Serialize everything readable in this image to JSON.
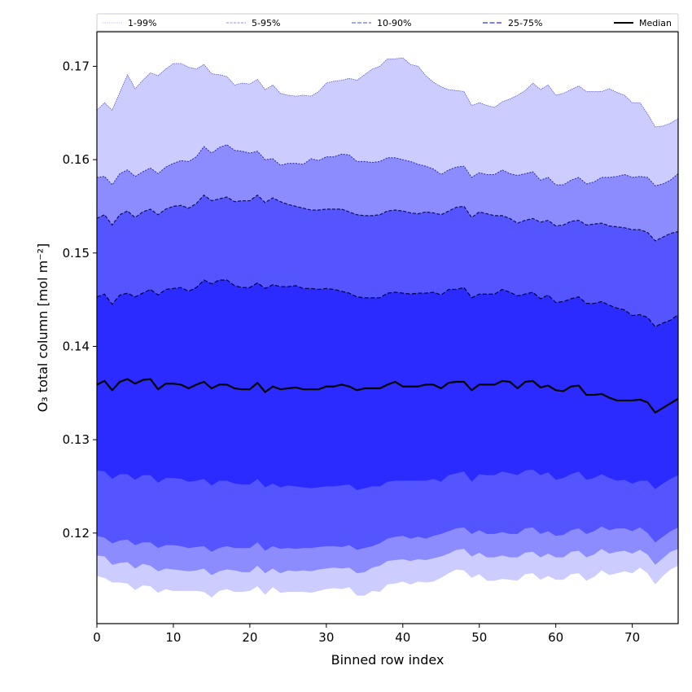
{
  "chart_data": {
    "type": "area",
    "title": "",
    "xlabel": "Binned row index",
    "ylabel": "O₃ total column [mol m⁻²]",
    "xlim": [
      0,
      76
    ],
    "ylim": [
      0.1103,
      0.1737
    ],
    "grid": false,
    "legend_placement": "top",
    "x_ticks": [
      0,
      10,
      20,
      30,
      40,
      50,
      60,
      70
    ],
    "x_tick_labels": [
      "0",
      "10",
      "20",
      "30",
      "40",
      "50",
      "60",
      "70"
    ],
    "y_ticks": [
      0.12,
      0.13,
      0.14,
      0.15,
      0.16,
      0.17
    ],
    "y_tick_labels": [
      "0.12",
      "0.13",
      "0.14",
      "0.15",
      "0.16",
      "0.17"
    ],
    "legend": [
      {
        "label": "1-99%",
        "color": "#ccccff",
        "style": "dotted"
      },
      {
        "label": "5-95%",
        "color": "#8c8cff",
        "style": "dashed-fine"
      },
      {
        "label": "10-90%",
        "color": "#5555ff",
        "style": "dashed"
      },
      {
        "label": "25-75%",
        "color": "#2b2bff",
        "style": "dashed-bold"
      },
      {
        "label": "Median",
        "color": "#000000",
        "style": "solid"
      }
    ],
    "x": [
      0,
      1,
      2,
      3,
      4,
      5,
      6,
      7,
      8,
      9,
      10,
      11,
      12,
      13,
      14,
      15,
      16,
      17,
      18,
      19,
      20,
      21,
      22,
      23,
      24,
      25,
      26,
      27,
      28,
      29,
      30,
      31,
      32,
      33,
      34,
      35,
      36,
      37,
      38,
      39,
      40,
      41,
      42,
      43,
      44,
      45,
      46,
      47,
      48,
      49,
      50,
      51,
      52,
      53,
      54,
      55,
      56,
      57,
      58,
      59,
      60,
      61,
      62,
      63,
      64,
      65,
      66,
      67,
      68,
      69,
      70,
      71,
      72,
      73,
      74,
      75,
      76
    ],
    "bands": [
      {
        "name": "1-99%",
        "color": "#ccccff",
        "upper": [
          0.1653,
          0.1661,
          0.1653,
          0.1672,
          0.1691,
          0.1676,
          0.1685,
          0.1693,
          0.169,
          0.1697,
          0.1703,
          0.1703,
          0.1699,
          0.1697,
          0.1702,
          0.1692,
          0.1691,
          0.1689,
          0.168,
          0.1682,
          0.1681,
          0.1686,
          0.1675,
          0.168,
          0.1671,
          0.1669,
          0.1668,
          0.1669,
          0.1668,
          0.1673,
          0.1682,
          0.1684,
          0.1685,
          0.1687,
          0.1685,
          0.1691,
          0.1697,
          0.17,
          0.1708,
          0.1708,
          0.1709,
          0.1702,
          0.17,
          0.169,
          0.1683,
          0.1678,
          0.1675,
          0.1674,
          0.1673,
          0.1658,
          0.1661,
          0.1658,
          0.1656,
          0.1662,
          0.1665,
          0.1669,
          0.1674,
          0.1682,
          0.1675,
          0.168,
          0.1669,
          0.1671,
          0.1675,
          0.1679,
          0.1673,
          0.1673,
          0.1673,
          0.1676,
          0.1672,
          0.1669,
          0.1661,
          0.1661,
          0.1649,
          0.1635,
          0.1636,
          0.1639,
          0.1644
        ],
        "lower": [
          0.1154,
          0.1152,
          0.1147,
          0.1147,
          0.1146,
          0.1139,
          0.1144,
          0.1143,
          0.1136,
          0.114,
          0.1138,
          0.1138,
          0.1138,
          0.1138,
          0.1137,
          0.1131,
          0.1138,
          0.114,
          0.1137,
          0.1137,
          0.1138,
          0.1143,
          0.1134,
          0.1142,
          0.1136,
          0.1137,
          0.1137,
          0.1137,
          0.1136,
          0.1138,
          0.114,
          0.1141,
          0.114,
          0.1142,
          0.1133,
          0.1133,
          0.1138,
          0.1137,
          0.1145,
          0.1146,
          0.1148,
          0.1145,
          0.1148,
          0.1147,
          0.1148,
          0.1152,
          0.1157,
          0.1161,
          0.116,
          0.1152,
          0.1156,
          0.1149,
          0.1149,
          0.1151,
          0.115,
          0.1149,
          0.1156,
          0.1157,
          0.115,
          0.1154,
          0.115,
          0.115,
          0.1156,
          0.1157,
          0.1149,
          0.1153,
          0.116,
          0.1155,
          0.1157,
          0.1159,
          0.1157,
          0.1163,
          0.1157,
          0.1145,
          0.1154,
          0.1161,
          0.1165
        ]
      },
      {
        "name": "5-95%",
        "color": "#8c8cff",
        "upper": [
          0.1581,
          0.1582,
          0.1573,
          0.1585,
          0.1589,
          0.1582,
          0.1587,
          0.1591,
          0.1585,
          0.1592,
          0.1596,
          0.1599,
          0.1598,
          0.1603,
          0.1614,
          0.1607,
          0.1613,
          0.1616,
          0.161,
          0.1609,
          0.1607,
          0.1609,
          0.16,
          0.1601,
          0.1594,
          0.1596,
          0.1596,
          0.1595,
          0.1601,
          0.1599,
          0.1603,
          0.1603,
          0.1606,
          0.1605,
          0.1598,
          0.1598,
          0.1597,
          0.1598,
          0.1602,
          0.1602,
          0.16,
          0.1598,
          0.1595,
          0.1593,
          0.159,
          0.1584,
          0.1589,
          0.1592,
          0.1593,
          0.1581,
          0.1586,
          0.1584,
          0.1584,
          0.1589,
          0.1585,
          0.1583,
          0.1585,
          0.1587,
          0.1578,
          0.1581,
          0.1573,
          0.1573,
          0.1578,
          0.1581,
          0.1574,
          0.1576,
          0.1581,
          0.1581,
          0.1582,
          0.1584,
          0.1581,
          0.1582,
          0.1581,
          0.1572,
          0.1574,
          0.1578,
          0.1585
        ],
        "lower": [
          0.1176,
          0.1175,
          0.1166,
          0.1168,
          0.1169,
          0.1162,
          0.1167,
          0.1165,
          0.1159,
          0.1162,
          0.1161,
          0.116,
          0.1159,
          0.116,
          0.1162,
          0.1155,
          0.1159,
          0.1161,
          0.116,
          0.1158,
          0.1158,
          0.1165,
          0.1157,
          0.1162,
          0.1157,
          0.116,
          0.1159,
          0.116,
          0.1159,
          0.1161,
          0.1162,
          0.1163,
          0.1162,
          0.1163,
          0.1157,
          0.1158,
          0.1163,
          0.1165,
          0.117,
          0.1171,
          0.1172,
          0.117,
          0.1172,
          0.1171,
          0.1173,
          0.1175,
          0.1178,
          0.1182,
          0.1183,
          0.1175,
          0.1179,
          0.1174,
          0.1174,
          0.1176,
          0.1174,
          0.1174,
          0.1179,
          0.118,
          0.1174,
          0.1178,
          0.1174,
          0.1174,
          0.118,
          0.1181,
          0.1174,
          0.1177,
          0.1183,
          0.1178,
          0.118,
          0.1181,
          0.1178,
          0.1182,
          0.1177,
          0.1166,
          0.1173,
          0.118,
          0.1183
        ]
      },
      {
        "name": "10-90%",
        "color": "#5555ff",
        "upper": [
          0.1537,
          0.1541,
          0.153,
          0.1541,
          0.1545,
          0.1538,
          0.1544,
          0.1547,
          0.1541,
          0.1547,
          0.155,
          0.1551,
          0.1548,
          0.1553,
          0.1562,
          0.1556,
          0.1558,
          0.156,
          0.1555,
          0.1556,
          0.1556,
          0.1562,
          0.1554,
          0.1559,
          0.1555,
          0.1552,
          0.155,
          0.1548,
          0.1546,
          0.1546,
          0.1547,
          0.1547,
          0.1547,
          0.1544,
          0.1541,
          0.154,
          0.154,
          0.1541,
          0.1545,
          0.1546,
          0.1545,
          0.1543,
          0.1542,
          0.1544,
          0.1543,
          0.1541,
          0.1545,
          0.1549,
          0.155,
          0.1538,
          0.1544,
          0.1542,
          0.154,
          0.154,
          0.1537,
          0.1532,
          0.1535,
          0.1537,
          0.1533,
          0.1535,
          0.1529,
          0.153,
          0.1534,
          0.1535,
          0.153,
          0.1531,
          0.1532,
          0.1529,
          0.1528,
          0.1527,
          0.1525,
          0.1525,
          0.1522,
          0.1513,
          0.1517,
          0.1521,
          0.1523
        ],
        "lower": [
          0.1197,
          0.1195,
          0.1189,
          0.1192,
          0.1193,
          0.1187,
          0.119,
          0.119,
          0.1184,
          0.1187,
          0.1187,
          0.1186,
          0.1184,
          0.1185,
          0.1186,
          0.118,
          0.1184,
          0.1186,
          0.1184,
          0.1184,
          0.1184,
          0.119,
          0.1181,
          0.1186,
          0.1183,
          0.1184,
          0.1183,
          0.1184,
          0.1184,
          0.1185,
          0.1186,
          0.1186,
          0.1185,
          0.1187,
          0.1182,
          0.1184,
          0.1186,
          0.1189,
          0.1194,
          0.1196,
          0.1197,
          0.1194,
          0.1196,
          0.1194,
          0.1197,
          0.1199,
          0.1202,
          0.1205,
          0.1206,
          0.1199,
          0.1203,
          0.1199,
          0.1199,
          0.1201,
          0.1199,
          0.1199,
          0.1205,
          0.1206,
          0.1199,
          0.1202,
          0.1197,
          0.1198,
          0.1203,
          0.1205,
          0.1199,
          0.1202,
          0.1207,
          0.1203,
          0.1205,
          0.1205,
          0.1202,
          0.1206,
          0.12,
          0.119,
          0.1196,
          0.1202,
          0.1206
        ]
      },
      {
        "name": "25-75%",
        "color": "#2b2bff",
        "upper": [
          0.1453,
          0.1456,
          0.1445,
          0.1455,
          0.1457,
          0.1453,
          0.1457,
          0.1461,
          0.1455,
          0.1461,
          0.1462,
          0.1463,
          0.1459,
          0.1463,
          0.1471,
          0.1467,
          0.1471,
          0.1471,
          0.1465,
          0.1463,
          0.1463,
          0.1468,
          0.1462,
          0.1466,
          0.1464,
          0.1464,
          0.1465,
          0.1462,
          0.1462,
          0.1461,
          0.1462,
          0.1461,
          0.1459,
          0.1457,
          0.1453,
          0.1452,
          0.1452,
          0.1452,
          0.1457,
          0.1458,
          0.1457,
          0.1456,
          0.1457,
          0.1457,
          0.1458,
          0.1455,
          0.1461,
          0.1461,
          0.1463,
          0.1452,
          0.1456,
          0.1456,
          0.1456,
          0.1461,
          0.1458,
          0.1454,
          0.1456,
          0.1458,
          0.1451,
          0.1455,
          0.1447,
          0.1448,
          0.1451,
          0.1453,
          0.1446,
          0.1446,
          0.1448,
          0.1444,
          0.1441,
          0.1439,
          0.1433,
          0.1434,
          0.1431,
          0.1421,
          0.1425,
          0.1428,
          0.1434
        ],
        "lower": [
          0.1267,
          0.1266,
          0.1258,
          0.1263,
          0.1263,
          0.1257,
          0.1262,
          0.1262,
          0.1254,
          0.1259,
          0.1259,
          0.1258,
          0.1255,
          0.1256,
          0.1258,
          0.1251,
          0.1256,
          0.1256,
          0.1253,
          0.1252,
          0.1252,
          0.1258,
          0.1249,
          0.1253,
          0.1249,
          0.1251,
          0.125,
          0.1249,
          0.1248,
          0.1249,
          0.125,
          0.125,
          0.1251,
          0.1252,
          0.1246,
          0.1248,
          0.125,
          0.125,
          0.1255,
          0.1256,
          0.1256,
          0.1256,
          0.1256,
          0.1256,
          0.1258,
          0.1255,
          0.1262,
          0.1264,
          0.1266,
          0.1255,
          0.1263,
          0.1262,
          0.1262,
          0.1266,
          0.1264,
          0.1262,
          0.1267,
          0.1268,
          0.1262,
          0.1265,
          0.1257,
          0.1259,
          0.1263,
          0.1266,
          0.1257,
          0.1259,
          0.1263,
          0.1259,
          0.1256,
          0.1257,
          0.1253,
          0.1256,
          0.1256,
          0.1247,
          0.1253,
          0.1258,
          0.1262
        ]
      }
    ],
    "series": [
      {
        "name": "Median",
        "color": "#000000",
        "values": [
          0.1359,
          0.1363,
          0.1353,
          0.1362,
          0.1365,
          0.136,
          0.1364,
          0.1365,
          0.1354,
          0.136,
          0.136,
          0.1359,
          0.1355,
          0.1359,
          0.1362,
          0.1355,
          0.1359,
          0.1359,
          0.1355,
          0.1354,
          0.1354,
          0.1361,
          0.1351,
          0.1357,
          0.1354,
          0.1355,
          0.1356,
          0.1354,
          0.1354,
          0.1354,
          0.1357,
          0.1357,
          0.1359,
          0.1357,
          0.1353,
          0.1355,
          0.1355,
          0.1355,
          0.1359,
          0.1362,
          0.1357,
          0.1357,
          0.1357,
          0.1359,
          0.1359,
          0.1355,
          0.1361,
          0.1362,
          0.1362,
          0.1353,
          0.1359,
          0.1359,
          0.1359,
          0.1363,
          0.1362,
          0.1355,
          0.1362,
          0.1363,
          0.1356,
          0.1358,
          0.1353,
          0.1352,
          0.1357,
          0.1358,
          0.1348,
          0.1348,
          0.1349,
          0.1345,
          0.1342,
          0.1342,
          0.1342,
          0.1343,
          0.134,
          0.1329,
          0.1334,
          0.1339,
          0.1344
        ]
      }
    ]
  }
}
